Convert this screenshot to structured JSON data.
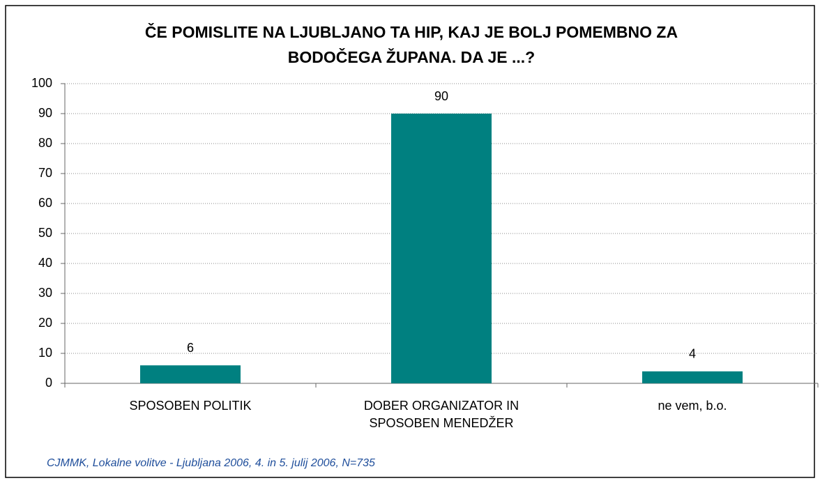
{
  "chart_data": {
    "type": "bar",
    "title": "ČE POMISLITE NA LJUBLJANO TA HIP, KAJ JE BOLJ POMEMBNO ZA BODOČEGA ŽUPANA. DA JE ...?",
    "categories": [
      "SPOSOBEN POLITIK",
      "DOBER ORGANIZATOR IN SPOSOBEN MENEDŽER",
      "ne vem, b.o."
    ],
    "values": [
      6,
      90,
      4
    ],
    "color": "#008080",
    "ylim": [
      0,
      100
    ],
    "yticks": [
      0,
      10,
      20,
      30,
      40,
      50,
      60,
      70,
      80,
      90,
      100
    ],
    "grid": true,
    "source": "CJMMK, Lokalne volitve - Ljubljana 2006, 4. in 5. julij 2006, N=735"
  }
}
